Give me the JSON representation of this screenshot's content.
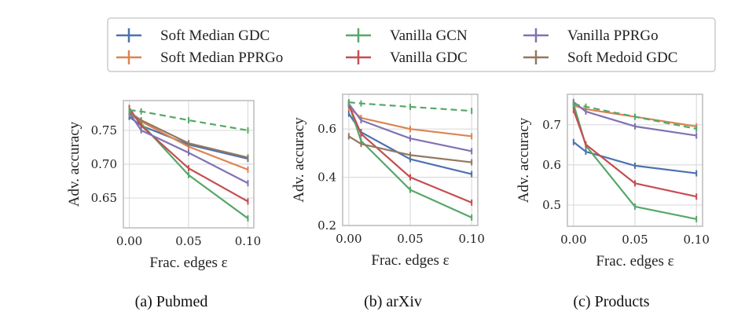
{
  "legend": {
    "entries": [
      {
        "name": "Soft Median GDC",
        "color": "#4c72b0"
      },
      {
        "name": "Soft Median PPRGo",
        "color": "#dd8452"
      },
      {
        "name": "Vanilla GCN",
        "color": "#55a868"
      },
      {
        "name": "Vanilla GDC",
        "color": "#c44e52"
      },
      {
        "name": "Vanilla PPRGo",
        "color": "#8172b3"
      },
      {
        "name": "Soft Medoid GDC",
        "color": "#937860"
      }
    ],
    "placement": "top"
  },
  "chart_data": [
    {
      "type": "line",
      "caption": "(a) Pubmed",
      "xlabel": "Frac. edges ε",
      "ylabel": "Adv. accuracy",
      "x": [
        0.0,
        0.01,
        0.05,
        0.1
      ],
      "xticks": [
        "0.00",
        "0.05",
        "0.10"
      ],
      "xtick_values": [
        0.0,
        0.05,
        0.1
      ],
      "yticks": [
        "0.65",
        "0.70",
        "0.75"
      ],
      "ytick_values": [
        0.65,
        0.7,
        0.75
      ],
      "xlim": [
        -0.005,
        0.105
      ],
      "ylim": [
        0.606,
        0.794
      ],
      "grid": true,
      "series": [
        {
          "name": "Soft Median GDC",
          "values": [
            0.77,
            0.757,
            0.729,
            0.708
          ]
        },
        {
          "name": "Soft Median PPRGo",
          "values": [
            0.775,
            0.763,
            0.726,
            0.692
          ]
        },
        {
          "name": "Vanilla GCN",
          "values": [
            0.778,
            0.76,
            0.684,
            0.62
          ]
        },
        {
          "name": "Vanilla GDC",
          "values": [
            0.783,
            0.757,
            0.694,
            0.645
          ]
        },
        {
          "name": "Vanilla PPRGo",
          "values": [
            0.776,
            0.75,
            0.717,
            0.672
          ]
        },
        {
          "name": "Soft Medoid GDC",
          "values": [
            0.777,
            0.765,
            0.731,
            0.71
          ]
        },
        {
          "name": "Vanilla GCN (clean)",
          "style": "dashed",
          "color_of": "Vanilla GCN",
          "values": [
            0.78,
            0.778,
            0.765,
            0.75
          ]
        }
      ]
    },
    {
      "type": "line",
      "caption": "(b) arXiv",
      "xlabel": "Frac. edges ε",
      "ylabel": "Adv. accuracy",
      "x": [
        0.0,
        0.01,
        0.05,
        0.1
      ],
      "xticks": [
        "0.00",
        "0.05",
        "0.10"
      ],
      "xtick_values": [
        0.0,
        0.05,
        0.1
      ],
      "yticks": [
        "0.2",
        "0.4",
        "0.6"
      ],
      "ytick_values": [
        0.2,
        0.4,
        0.6
      ],
      "xlim": [
        -0.005,
        0.105
      ],
      "ylim": [
        0.2,
        0.744
      ],
      "grid": true,
      "series": [
        {
          "name": "Soft Median GDC",
          "values": [
            0.664,
            0.587,
            0.475,
            0.413
          ]
        },
        {
          "name": "Soft Median PPRGo",
          "values": [
            0.689,
            0.646,
            0.6,
            0.57
          ]
        },
        {
          "name": "Vanilla GCN",
          "values": [
            0.705,
            0.551,
            0.348,
            0.233
          ]
        },
        {
          "name": "Vanilla GDC",
          "values": [
            0.7,
            0.58,
            0.4,
            0.295
          ]
        },
        {
          "name": "Vanilla PPRGo",
          "values": [
            0.705,
            0.636,
            0.561,
            0.508
          ]
        },
        {
          "name": "Soft Medoid GDC",
          "values": [
            0.57,
            0.538,
            0.492,
            0.462
          ]
        },
        {
          "name": "Vanilla GCN (clean)",
          "style": "dashed",
          "color_of": "Vanilla GCN",
          "values": [
            0.711,
            0.706,
            0.692,
            0.675
          ]
        }
      ]
    },
    {
      "type": "line",
      "caption": "(c) Products",
      "xlabel": "Frac. edges ε",
      "ylabel": "Adv. accuracy",
      "x": [
        0.0,
        0.01,
        0.05,
        0.1
      ],
      "xticks": [
        "0.00",
        "0.05",
        "0.10"
      ],
      "xtick_values": [
        0.0,
        0.05,
        0.1
      ],
      "yticks": [
        "0.5",
        "0.6",
        "0.7"
      ],
      "ytick_values": [
        0.5,
        0.6,
        0.7
      ],
      "xlim": [
        -0.005,
        0.105
      ],
      "ylim": [
        0.447,
        0.776
      ],
      "grid": true,
      "series": [
        {
          "name": "Soft Median GDC",
          "values": [
            0.657,
            0.633,
            0.598,
            0.579
          ]
        },
        {
          "name": "Soft Median PPRGo",
          "values": [
            0.748,
            0.739,
            0.72,
            0.696
          ]
        },
        {
          "name": "Vanilla GCN",
          "values": [
            0.752,
            0.648,
            0.496,
            0.465
          ]
        },
        {
          "name": "Vanilla GDC",
          "values": [
            0.737,
            0.651,
            0.554,
            0.521
          ]
        },
        {
          "name": "Vanilla PPRGo",
          "values": [
            0.757,
            0.733,
            0.696,
            0.673
          ]
        },
        {
          "name": "Vanilla GCN (clean)",
          "style": "dashed",
          "color_of": "Vanilla GCN",
          "values": [
            0.752,
            0.745,
            0.72,
            0.69
          ]
        }
      ]
    }
  ]
}
